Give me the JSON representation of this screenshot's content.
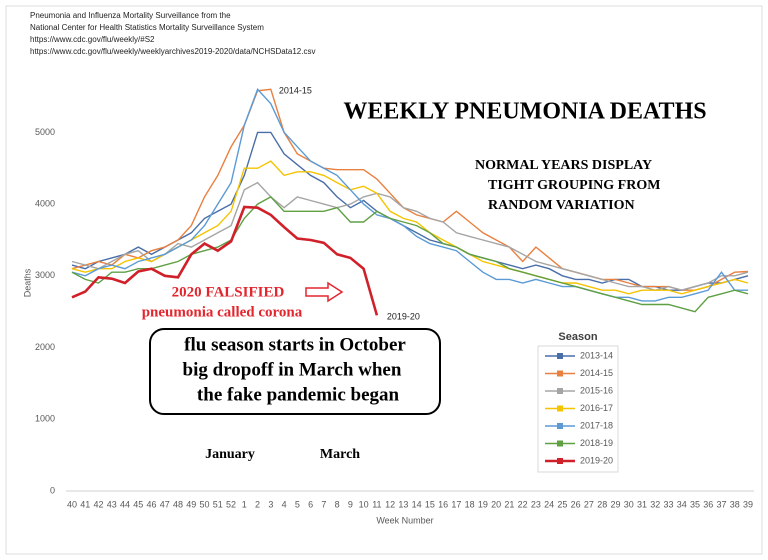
{
  "chart_data": {
    "type": "line",
    "title": "WEEKLY PNEUMONIA DEATHS",
    "source": [
      "Pneumonia and Influenza Mortality Surveillance from the",
      "National Center for Health Statistics Mortality Surveillance System",
      "https://www.cdc.gov/flu/weekly/#S2",
      "https://www.cdc.gov/flu/weekly/weeklyarchives2019-2020/data/NCHSData12.csv"
    ],
    "annotations": {
      "normal": [
        "NORMAL YEARS DISPLAY",
        "TIGHT GROUPING FROM",
        "RANDOM VARIATION"
      ],
      "falsified": [
        "2020 FALSIFIED",
        "pneumonia called corona"
      ],
      "flu": [
        "flu season starts in October",
        "big dropoff in March when",
        "the fake pandemic began"
      ],
      "months": [
        "January",
        "March"
      ]
    },
    "y_label": "Deaths",
    "x_label": "Week Number",
    "legend_title": "Season",
    "categories": [
      "40",
      "41",
      "42",
      "43",
      "44",
      "45",
      "46",
      "47",
      "48",
      "49",
      "50",
      "51",
      "52",
      "1",
      "2",
      "3",
      "4",
      "5",
      "6",
      "7",
      "8",
      "9",
      "10",
      "11",
      "12",
      "13",
      "14",
      "15",
      "16",
      "17",
      "18",
      "19",
      "20",
      "21",
      "22",
      "23",
      "24",
      "25",
      "26",
      "27",
      "28",
      "29",
      "30",
      "31",
      "32",
      "33",
      "34",
      "35",
      "36",
      "37",
      "38",
      "39"
    ],
    "ylim": [
      0,
      5800
    ],
    "yticks": [
      0,
      1000,
      2000,
      3000,
      4000,
      5000
    ],
    "grid": false,
    "series": [
      {
        "name": "2013-14",
        "color": "#4a6ea8",
        "values": [
          3150,
          3100,
          3200,
          3250,
          3300,
          3400,
          3300,
          3400,
          3500,
          3600,
          3800,
          3900,
          4000,
          4400,
          5000,
          5000,
          4700,
          4550,
          4400,
          4300,
          4100,
          3950,
          4050,
          3900,
          3800,
          3700,
          3600,
          3500,
          3450,
          3400,
          3300,
          3250,
          3200,
          3150,
          3100,
          3150,
          3100,
          3000,
          2950,
          2950,
          2900,
          2950,
          2950,
          2850,
          2850,
          2800,
          2800,
          2850,
          2900,
          2900,
          2950,
          3000
        ]
      },
      {
        "name": "2014-15",
        "color": "#e9803f",
        "values": [
          3100,
          3150,
          3200,
          3150,
          3300,
          3250,
          3350,
          3400,
          3500,
          3700,
          4100,
          4400,
          4800,
          5100,
          5580,
          5600,
          5000,
          4700,
          4600,
          4500,
          4480,
          4480,
          4480,
          4350,
          4150,
          3950,
          3850,
          3800,
          3750,
          3900,
          3750,
          3600,
          3500,
          3400,
          3200,
          3400,
          3250,
          3100,
          3050,
          3000,
          2950,
          2950,
          2900,
          2850,
          2850,
          2850,
          2800,
          2800,
          2850,
          2950,
          3050,
          3060
        ]
      },
      {
        "name": "2015-16",
        "color": "#a5a5a5",
        "values": [
          3200,
          3150,
          3100,
          3200,
          3300,
          3350,
          3200,
          3300,
          3450,
          3400,
          3500,
          3600,
          3700,
          4200,
          4300,
          4100,
          3950,
          4100,
          4050,
          4000,
          3950,
          4000,
          4100,
          4150,
          4100,
          3950,
          3900,
          3800,
          3750,
          3600,
          3550,
          3500,
          3450,
          3400,
          3300,
          3200,
          3150,
          3100,
          3050,
          3000,
          2950,
          2900,
          2850,
          2850,
          2800,
          2850,
          2800,
          2850,
          2900,
          3000,
          3000,
          3050
        ]
      },
      {
        "name": "2016-17",
        "color": "#f5c400",
        "values": [
          3100,
          3050,
          3100,
          3100,
          3200,
          3250,
          3200,
          3300,
          3400,
          3500,
          3600,
          3700,
          3900,
          4500,
          4500,
          4600,
          4400,
          4450,
          4450,
          4400,
          4300,
          4200,
          4250,
          4150,
          3900,
          3800,
          3750,
          3600,
          3500,
          3400,
          3300,
          3200,
          3150,
          3100,
          3050,
          3000,
          2950,
          2900,
          2900,
          2850,
          2800,
          2800,
          2750,
          2800,
          2800,
          2800,
          2750,
          2800,
          2850,
          2900,
          2950,
          2900
        ]
      },
      {
        "name": "2017-18",
        "color": "#5b9bd5",
        "values": [
          3050,
          3000,
          3100,
          3150,
          3100,
          3200,
          3250,
          3300,
          3400,
          3500,
          3700,
          4000,
          4300,
          5100,
          5600,
          5400,
          5000,
          4800,
          4600,
          4500,
          4400,
          4200,
          4000,
          3850,
          3800,
          3700,
          3550,
          3450,
          3400,
          3350,
          3200,
          3050,
          2950,
          2950,
          2900,
          2950,
          2900,
          2850,
          2850,
          2800,
          2750,
          2700,
          2700,
          2650,
          2650,
          2700,
          2700,
          2750,
          2800,
          3050,
          2800,
          2800
        ]
      },
      {
        "name": "2018-19",
        "color": "#5fa043",
        "values": [
          3050,
          2950,
          2900,
          3050,
          3050,
          3100,
          3100,
          3150,
          3200,
          3300,
          3350,
          3400,
          3500,
          3800,
          4000,
          4100,
          3900,
          3900,
          3900,
          3900,
          3950,
          3750,
          3750,
          3900,
          3800,
          3750,
          3700,
          3600,
          3450,
          3400,
          3300,
          3250,
          3200,
          3100,
          3050,
          3000,
          2950,
          2900,
          2850,
          2800,
          2750,
          2700,
          2650,
          2600,
          2600,
          2600,
          2550,
          2500,
          2700,
          2750,
          2800,
          2750
        ]
      },
      {
        "name": "2019-20",
        "color": "#d0202a",
        "values": [
          2700,
          2780,
          2980,
          2960,
          2900,
          3060,
          3100,
          3000,
          2980,
          3300,
          3450,
          3350,
          3480,
          3960,
          3950,
          3850,
          3680,
          3520,
          3500,
          3460,
          3300,
          3250,
          3100,
          2450,
          null,
          null,
          null,
          null,
          null,
          null,
          null,
          null,
          null,
          null,
          null,
          null,
          null,
          null,
          null,
          null,
          null,
          null,
          null,
          null,
          null,
          null,
          null,
          null,
          null,
          null,
          null,
          null
        ]
      }
    ]
  }
}
